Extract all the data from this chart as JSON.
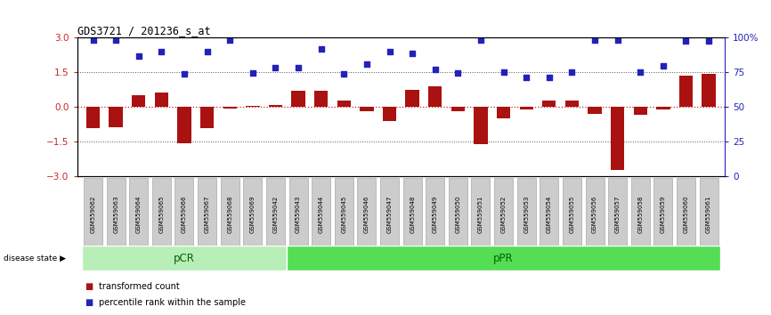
{
  "title": "GDS3721 / 201236_s_at",
  "samples": [
    "GSM559062",
    "GSM559063",
    "GSM559064",
    "GSM559065",
    "GSM559066",
    "GSM559067",
    "GSM559068",
    "GSM559069",
    "GSM559042",
    "GSM559043",
    "GSM559044",
    "GSM559045",
    "GSM559046",
    "GSM559047",
    "GSM559048",
    "GSM559049",
    "GSM559050",
    "GSM559051",
    "GSM559052",
    "GSM559053",
    "GSM559054",
    "GSM559055",
    "GSM559056",
    "GSM559057",
    "GSM559058",
    "GSM559059",
    "GSM559060",
    "GSM559061"
  ],
  "bar_values": [
    -0.9,
    -0.88,
    0.5,
    0.62,
    -1.55,
    -0.9,
    -0.05,
    0.05,
    0.08,
    0.7,
    0.7,
    0.28,
    -0.18,
    -0.6,
    0.76,
    0.9,
    -0.18,
    -1.62,
    -0.5,
    -0.1,
    0.28,
    0.28,
    -0.28,
    -2.72,
    -0.32,
    -0.1,
    1.38,
    1.42
  ],
  "dot_values": [
    2.92,
    2.92,
    2.2,
    2.42,
    1.45,
    2.42,
    2.92,
    1.48,
    1.72,
    1.72,
    2.5,
    1.45,
    1.88,
    2.42,
    2.32,
    1.62,
    1.48,
    2.92,
    1.5,
    1.3,
    1.28,
    1.5,
    2.92,
    2.92,
    1.5,
    1.8,
    2.88,
    2.88
  ],
  "pcr_count": 9,
  "ppr_count": 19,
  "bar_color": "#aa1111",
  "dot_color": "#2222bb",
  "pcr_color": "#b8eeb8",
  "ppr_color": "#55dd55",
  "ylim": [
    -3.0,
    3.0
  ],
  "yticks_left": [
    -3,
    -1.5,
    0,
    1.5,
    3
  ],
  "right_yticks_pct": [
    0,
    25,
    50,
    75,
    100
  ],
  "hline_zero_color": "#cc2222",
  "hline_other_color": "#555555",
  "label_bg_color": "#cccccc",
  "label_border_color": "#999999",
  "background_color": "#ffffff",
  "disease_state_label": "disease state",
  "legend_items": [
    {
      "label": "transformed count",
      "color": "#aa1111"
    },
    {
      "label": "percentile rank within the sample",
      "color": "#2222bb"
    }
  ]
}
